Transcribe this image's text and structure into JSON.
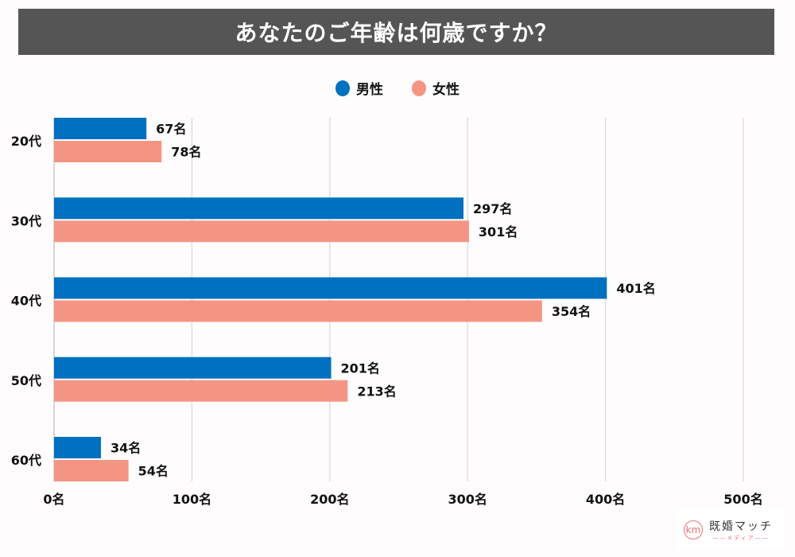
{
  "header": {
    "title": "あなたのご年齢は何歳ですか？"
  },
  "legend": [
    {
      "label": "男性",
      "color": "#0070c0"
    },
    {
      "label": "女性",
      "color": "#f49584"
    }
  ],
  "logo": {
    "mark": "km",
    "name": "既婚マッチ",
    "sub": "——メディア——"
  },
  "chart_data": {
    "type": "bar",
    "orientation": "horizontal",
    "title": "あなたのご年齢は何歳ですか？",
    "categories": [
      "20代",
      "30代",
      "40代",
      "50代",
      "60代"
    ],
    "series": [
      {
        "name": "男性",
        "color": "#0070c0",
        "values": [
          67,
          297,
          401,
          201,
          34
        ]
      },
      {
        "name": "女性",
        "color": "#f49584",
        "values": [
          78,
          301,
          354,
          213,
          54
        ]
      }
    ],
    "value_suffix": "名",
    "xlim": [
      0,
      500
    ],
    "xticks": [
      0,
      100,
      200,
      300,
      400,
      500
    ],
    "xtick_labels": [
      "0名",
      "100名",
      "200名",
      "300名",
      "400名",
      "500名"
    ],
    "xlabel": "",
    "ylabel": "",
    "grid": true,
    "legend_position": "top-center",
    "data_labels": true
  }
}
